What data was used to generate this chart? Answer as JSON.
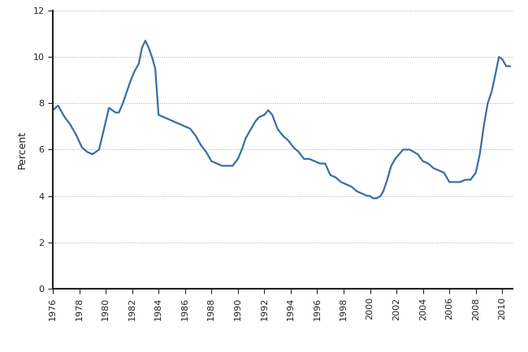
{
  "ylabel": "Percent",
  "xlim": [
    1976,
    2010.75
  ],
  "ylim": [
    0,
    12
  ],
  "xticks": [
    1976,
    1978,
    1980,
    1982,
    1984,
    1986,
    1988,
    1990,
    1992,
    1994,
    1996,
    1998,
    2000,
    2002,
    2004,
    2006,
    2008,
    2010
  ],
  "yticks": [
    0,
    2,
    4,
    6,
    8,
    10,
    12
  ],
  "line_color": "#3a6ea5",
  "line_width": 1.6,
  "background_color": "#ffffff",
  "years_detail": [
    1976.0,
    1976.4,
    1976.9,
    1977.3,
    1977.8,
    1978.2,
    1978.6,
    1979.0,
    1979.5,
    1980.0,
    1980.25,
    1980.5,
    1980.75,
    1981.0,
    1981.3,
    1981.6,
    1981.9,
    1982.2,
    1982.5,
    1982.75,
    1983.0,
    1983.25,
    1983.5,
    1983.75,
    1984.0,
    1984.4,
    1984.8,
    1985.2,
    1985.6,
    1986.0,
    1986.4,
    1986.8,
    1987.2,
    1987.6,
    1988.0,
    1988.4,
    1988.8,
    1989.2,
    1989.6,
    1990.0,
    1990.3,
    1990.6,
    1991.0,
    1991.3,
    1991.6,
    1992.0,
    1992.3,
    1992.6,
    1993.0,
    1993.4,
    1993.8,
    1994.2,
    1994.6,
    1995.0,
    1995.4,
    1995.8,
    1996.2,
    1996.6,
    1997.0,
    1997.4,
    1997.8,
    1998.2,
    1998.6,
    1999.0,
    1999.4,
    1999.8,
    2000.0,
    2000.2,
    2000.5,
    2000.8,
    2001.0,
    2001.3,
    2001.6,
    2001.9,
    2002.2,
    2002.5,
    2002.8,
    2003.0,
    2003.3,
    2003.6,
    2004.0,
    2004.4,
    2004.8,
    2005.2,
    2005.6,
    2006.0,
    2006.4,
    2006.8,
    2007.2,
    2007.6,
    2008.0,
    2008.3,
    2008.6,
    2008.9,
    2009.2,
    2009.5,
    2009.75,
    2010.0,
    2010.3,
    2010.6
  ],
  "values_detail": [
    7.7,
    7.9,
    7.4,
    7.1,
    6.6,
    6.1,
    5.9,
    5.8,
    6.0,
    7.2,
    7.8,
    7.7,
    7.6,
    7.6,
    8.0,
    8.5,
    9.0,
    9.4,
    9.7,
    10.4,
    10.7,
    10.4,
    10.0,
    9.5,
    7.5,
    7.4,
    7.3,
    7.2,
    7.1,
    7.0,
    6.9,
    6.6,
    6.2,
    5.9,
    5.5,
    5.4,
    5.3,
    5.3,
    5.3,
    5.6,
    6.0,
    6.5,
    6.9,
    7.2,
    7.4,
    7.5,
    7.7,
    7.5,
    6.9,
    6.6,
    6.4,
    6.1,
    5.9,
    5.6,
    5.6,
    5.5,
    5.4,
    5.4,
    4.9,
    4.8,
    4.6,
    4.5,
    4.4,
    4.2,
    4.1,
    4.0,
    4.0,
    3.9,
    3.9,
    4.0,
    4.2,
    4.7,
    5.3,
    5.6,
    5.8,
    6.0,
    6.0,
    6.0,
    5.9,
    5.8,
    5.5,
    5.4,
    5.2,
    5.1,
    5.0,
    4.6,
    4.6,
    4.6,
    4.7,
    4.7,
    5.0,
    5.8,
    7.0,
    8.0,
    8.5,
    9.3,
    10.0,
    9.9,
    9.6,
    9.6
  ]
}
